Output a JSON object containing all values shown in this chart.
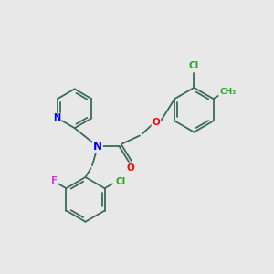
{
  "background_color": "#e8e8e8",
  "bond_color": "#3a6b5c",
  "atom_colors": {
    "N": "#0000ff",
    "O": "#ff0000",
    "F": "#cc44cc",
    "Cl_top": "#22aa22",
    "Cl_side": "#22aa22",
    "C": "#3a6b5c",
    "CH3": "#22aa22"
  }
}
